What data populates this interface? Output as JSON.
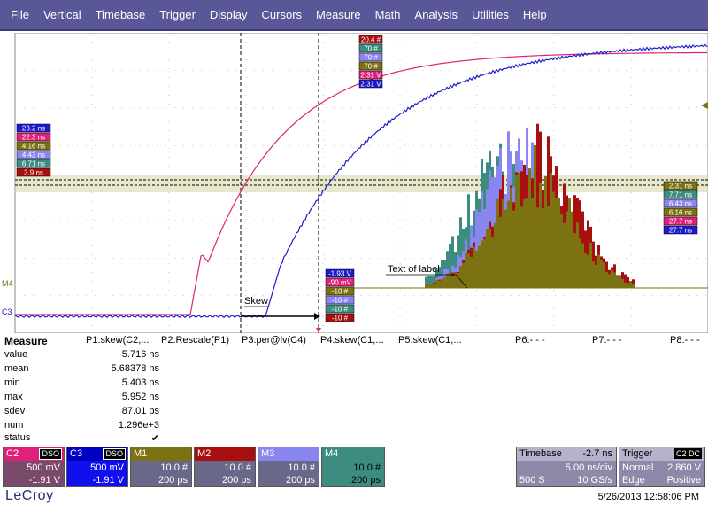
{
  "menu": [
    "File",
    "Vertical",
    "Timebase",
    "Trigger",
    "Display",
    "Cursors",
    "Measure",
    "Math",
    "Analysis",
    "Utilities",
    "Help"
  ],
  "colors": {
    "menu_bg": "#5a5799",
    "c2": "#e0207a",
    "c3": "#1c1ccc",
    "m1": "#7c7212",
    "m2": "#a81010",
    "m3": "#8a86f0",
    "m4": "#3d8c82"
  },
  "grid": {
    "left_marker": "C3",
    "m4_marker": "M4",
    "skew_label": "Skew",
    "text_of_label": "Text of label"
  },
  "label_stacks": {
    "left": [
      "23.2 ns",
      "22.3 ns",
      "4.16 ns",
      "4.43 ns",
      "6.71 ns",
      "3.9 ns"
    ],
    "center_top": [
      "20.4 #",
      "70 #",
      "70 #",
      "70 #",
      "2.31 V",
      "2.31 V"
    ],
    "center_bottom": [
      "-1.93 V",
      "-90 mV",
      "-10 #",
      "-10 #",
      "-10 #",
      "-10 #"
    ],
    "right": [
      "2.31 ns",
      "7.71 ns",
      "6.43 ns",
      "6.16 ns",
      "27.7 ns",
      "27.7 ns"
    ]
  },
  "measure": {
    "title": "Measure",
    "params": [
      "P1:skew(C2,...",
      "P2:Rescale(P1)",
      "P3:per@lv(C4)",
      "P4:skew(C1,...",
      "P5:skew(C1,...",
      "P6:- - -",
      "P7:- - -",
      "P8:- - -"
    ],
    "rows": [
      {
        "label": "value",
        "value": "5.716 ns"
      },
      {
        "label": "mean",
        "value": "5.68378 ns"
      },
      {
        "label": "min",
        "value": "5.403 ns"
      },
      {
        "label": "max",
        "value": "5.952 ns"
      },
      {
        "label": "sdev",
        "value": "87.01 ps"
      },
      {
        "label": "num",
        "value": "1.296e+3"
      },
      {
        "label": "status",
        "value": "✔"
      }
    ]
  },
  "channels": [
    {
      "name": "C2",
      "tag": "DSO",
      "line1": "500 mV",
      "line2": "-1.91 V"
    },
    {
      "name": "C3",
      "tag": "DSO",
      "line1": "500 mV",
      "line2": "-1.91 V"
    },
    {
      "name": "M1",
      "tag": "",
      "line1": "10.0 #",
      "line2": "200 ps"
    },
    {
      "name": "M2",
      "tag": "",
      "line1": "10.0 #",
      "line2": "200 ps"
    },
    {
      "name": "M3",
      "tag": "",
      "line1": "10.0 #",
      "line2": "200 ps"
    },
    {
      "name": "M4",
      "tag": "",
      "line1": "10.0 #",
      "line2": "200 ps"
    }
  ],
  "timebase": {
    "label": "Timebase",
    "delay": "-2.7 ns",
    "div": "5.00 ns/div",
    "samples": "500 S",
    "rate": "10 GS/s"
  },
  "trigger": {
    "label": "Trigger",
    "tags": "C2 DC",
    "mode": "Normal",
    "level": "2.860 V",
    "type": "Edge",
    "slope": "Positive"
  },
  "footer": {
    "brand": "LeCroy",
    "timestamp": "5/26/2013 12:58:06 PM"
  }
}
